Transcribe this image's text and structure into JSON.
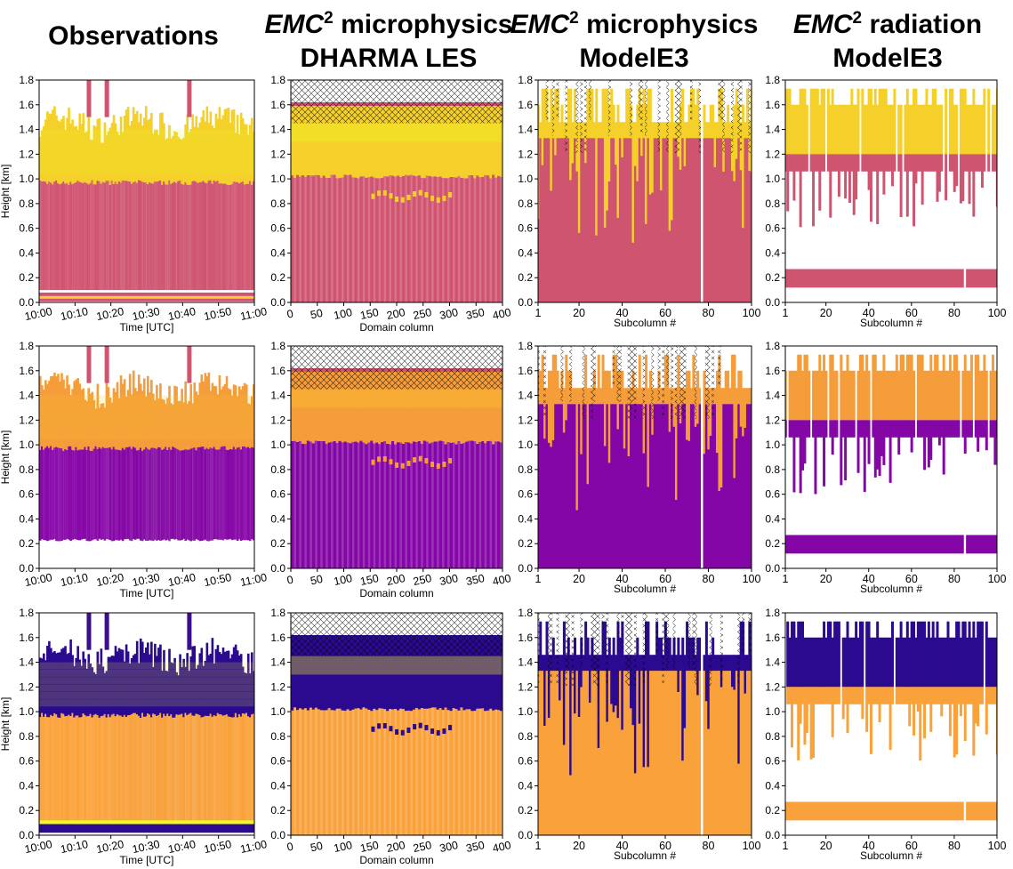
{
  "columns": [
    {
      "title_lines": [
        "Observations"
      ]
    },
    {
      "title_line1_em": "EMC",
      "title_line1_sup": "2",
      "title_line1_rest": " microphysics",
      "title_line2": "DHARMA LES"
    },
    {
      "title_line1_em": "EMC",
      "title_line1_sup": "2",
      "title_line1_rest": " microphysics",
      "title_line2": "ModelE3"
    },
    {
      "title_line1_em": "EMC",
      "title_line1_sup": "2",
      "title_line1_rest": " radiation",
      "title_line2": "ModelE3"
    }
  ],
  "chart_data": {
    "type": "heatmap",
    "layout": "3 rows x 4 columns of panels",
    "ylabel": "Height [km]",
    "ylim": [
      0.0,
      1.8
    ],
    "yticks": [
      "0.0",
      "0.2",
      "0.4",
      "0.6",
      "0.8",
      "1.0",
      "1.2",
      "1.4",
      "1.6",
      "1.8"
    ],
    "columns": [
      {
        "xlabel": "Time [UTC]",
        "xticks": [
          "10:00",
          "10:10",
          "10:20",
          "10:30",
          "10:40",
          "10:50",
          "11:00"
        ],
        "xlim": [
          0,
          60
        ],
        "xtick_values": [
          0,
          10,
          20,
          30,
          40,
          50,
          60
        ]
      },
      {
        "xlabel": "Domain column",
        "xticks": [
          "0",
          "50",
          "100",
          "150",
          "200",
          "250",
          "300",
          "350",
          "400"
        ],
        "xlim": [
          0,
          400
        ],
        "xtick_values": [
          0,
          50,
          100,
          150,
          200,
          250,
          300,
          350,
          400
        ]
      },
      {
        "xlabel": "Subcolumn #",
        "xticks": [
          "1",
          "20",
          "40",
          "60",
          "80",
          "100"
        ],
        "xlim": [
          1,
          100
        ],
        "xtick_values": [
          1,
          20,
          40,
          60,
          80,
          100
        ]
      },
      {
        "xlabel": "Subcolumn #",
        "xticks": [
          "1",
          "20",
          "40",
          "60",
          "80",
          "100"
        ],
        "xlim": [
          1,
          100
        ],
        "xtick_values": [
          1,
          20,
          40,
          60,
          80,
          100
        ]
      }
    ],
    "colormap": "plasma",
    "row_palettes": [
      {
        "liquid": "#cf5470",
        "upper": "#f5d02a",
        "bright": "#f0f921"
      },
      {
        "liquid": "#8506a6",
        "upper": "#f59d3a",
        "bright": "#fbc72b"
      },
      {
        "liquid": "#f9a13a",
        "upper": "#2b0a90",
        "bright": "#f0f921"
      }
    ],
    "layers": {
      "observations": {
        "liquid_top_km": 0.97,
        "cloud_top_km": 1.45,
        "precip_spikes_x": [
          14,
          19,
          42
        ]
      },
      "dharma": {
        "liquid_top_km": 1.02,
        "ice_top_km": 1.62,
        "hatched_range_km": [
          1.45,
          1.8
        ],
        "pocket_height_km": 0.88
      },
      "modele3_microphysics": {
        "liquid_top_km": 1.33,
        "layer_top_km": 1.46,
        "max_top_km": 1.8,
        "gap_subcolumn": 77
      },
      "modele3_radiation": {
        "low_band_km": [
          0.12,
          0.27
        ],
        "liquid_top_km": 1.06,
        "layer_top_km": 1.6,
        "gap_subcolumn": 85
      }
    }
  }
}
